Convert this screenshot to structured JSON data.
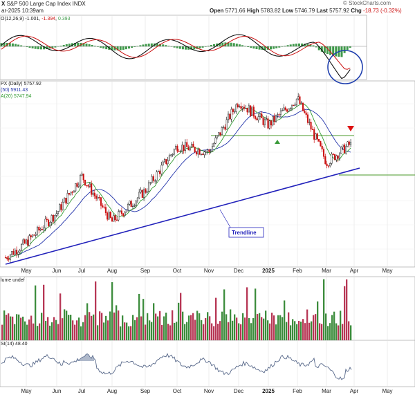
{
  "header": {
    "symbol_fragment": "X",
    "name": "S&P 500 Large Cap Index",
    "exchange": "INDX",
    "date_fragment": "ar-2025 10:39am",
    "watermark": "© StockCharts.com",
    "open_label": "Open",
    "open": "5771.66",
    "high_label": "High",
    "high": "5783.82",
    "low_label": "Low",
    "low": "5746.79",
    "last_label": "Last",
    "last": "5757.92",
    "chg_label": "Chg",
    "chg": "-18.73 (-0.32%)"
  },
  "macd_panel": {
    "label_prefix": "O(12,26,9)",
    "value_1": "-1.001",
    "value_2": "-1.394",
    "value_3": "0.393"
  },
  "price_panel": {
    "label_main": "PX (Daily) 5757.92",
    "label_ma50": "(50) 5911.43",
    "label_ma20": "A(20) 5747.94",
    "trendline_label": "Trendline",
    "year_label": "2025"
  },
  "volume_panel": {
    "label": "lume undef"
  },
  "rsi_panel": {
    "label": "SI(14) 48.40"
  },
  "colors": {
    "up": "#2a7a2a",
    "down": "#cc1111",
    "candle": "#000000",
    "ma50": "#2233aa",
    "ma20": "#2f9a2f",
    "trendline": "#2222bb",
    "support": "#4a9a2a",
    "macd_hist": "#3f9a4a",
    "annotation_circle": "#1f3fae",
    "vol_up": "#3c8c3c",
    "vol_down": "#b73755",
    "rsi": "#556688",
    "arrow_up": "#3a9a3a",
    "arrow_down": "#dd1111"
  },
  "chart_data": {
    "type": "line",
    "title": "S&P 500 Large Cap Index",
    "x_ticks": [
      "May",
      "Jun",
      "Jul",
      "Aug",
      "Sep",
      "Oct",
      "Nov",
      "Dec",
      "2025",
      "Feb",
      "Mar",
      "Apr",
      "May"
    ],
    "series": [
      {
        "name": "PX (Daily)",
        "x": [
          "May",
          "Jun",
          "Jul",
          "Aug",
          "Sep",
          "Oct",
          "Nov",
          "Dec",
          "2025",
          "Feb",
          "Mar",
          "Apr"
        ],
        "values": [
          5100,
          5300,
          5550,
          5240,
          5450,
          5750,
          5710,
          6050,
          5890,
          6070,
          5640,
          5757.92
        ]
      },
      {
        "name": "MA(50)",
        "values": [
          5080,
          5200,
          5380,
          5440,
          5470,
          5630,
          5750,
          5920,
          5970,
          6000,
          5911.43
        ]
      },
      {
        "name": "MA(20)",
        "values": [
          5110,
          5270,
          5500,
          5380,
          5500,
          5720,
          5760,
          6010,
          5930,
          6030,
          5747.94
        ]
      }
    ],
    "indicators": {
      "MACD(12,26,9)": [
        -1.001,
        -1.394,
        0.393
      ],
      "RSI(14)": 48.4
    },
    "annotations": [
      "Trendline"
    ],
    "grid": true
  }
}
